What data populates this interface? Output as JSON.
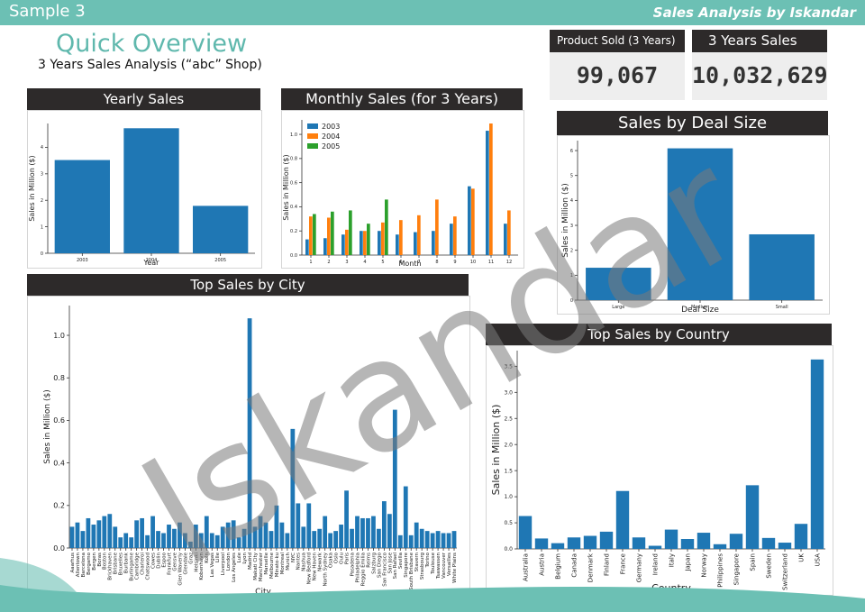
{
  "header": {
    "sample_label": "Sample 3",
    "brand": "Sales Analysis by Iskandar"
  },
  "overview": {
    "title": "Quick Overview",
    "subtitle": "3 Years Sales Analysis (“abc” Shop)"
  },
  "kpis": [
    {
      "label": "Product Sold (3 Years)",
      "value": "99,067"
    },
    {
      "label": "3 Years Sales",
      "value": "10,032,629"
    }
  ],
  "watermark": "Iskandar",
  "colors": {
    "teal": "#6cc0b4",
    "title_teal": "#5fb8ad",
    "header_dark": "#2d2a2a",
    "bar_blue": "#1f77b4",
    "orange": "#ff7f0e",
    "green": "#2ca02c"
  },
  "chart_data": [
    {
      "id": "yearly",
      "panel_title": "Yearly Sales",
      "type": "bar",
      "categories": [
        "2003",
        "2004",
        "2005"
      ],
      "values": [
        3.52,
        4.72,
        1.79
      ],
      "xlabel": "Year",
      "ylabel": "Sales in Million ($)",
      "ylim": [
        0,
        4.9
      ],
      "yticks": [
        0,
        1,
        2,
        3,
        4
      ],
      "grid": false
    },
    {
      "id": "monthly",
      "panel_title": "Monthly Sales (for 3 Years)",
      "type": "bar",
      "categories": [
        "1",
        "2",
        "3",
        "4",
        "5",
        "6",
        "7",
        "8",
        "9",
        "10",
        "11",
        "12"
      ],
      "series": [
        {
          "name": "2003",
          "values": [
            0.13,
            0.14,
            0.17,
            0.2,
            0.2,
            0.17,
            0.19,
            0.2,
            0.26,
            0.57,
            1.03,
            0.26
          ]
        },
        {
          "name": "2004",
          "values": [
            0.32,
            0.31,
            0.21,
            0.2,
            0.27,
            0.29,
            0.33,
            0.46,
            0.32,
            0.55,
            1.09,
            0.37
          ]
        },
        {
          "name": "2005",
          "values": [
            0.34,
            0.36,
            0.37,
            0.26,
            0.46,
            0,
            0,
            0,
            0,
            0,
            0,
            0
          ]
        }
      ],
      "xlabel": "Month",
      "ylabel": "Sales in Million ($)",
      "ylim": [
        0,
        1.12
      ],
      "yticks": [
        0.0,
        0.2,
        0.4,
        0.6,
        0.8,
        1.0
      ],
      "legend": "top-left",
      "grid": false
    },
    {
      "id": "dealsize",
      "panel_title": "Sales by Deal Size",
      "type": "bar",
      "categories": [
        "Large",
        "Medium",
        "Small"
      ],
      "values": [
        1.3,
        6.09,
        2.64
      ],
      "xlabel": "Deal Size",
      "ylabel": "Sales in Million ($)",
      "ylim": [
        0,
        6.4
      ],
      "yticks": [
        0,
        1,
        2,
        3,
        4,
        5,
        6
      ],
      "grid": false
    },
    {
      "id": "city",
      "panel_title": "Top Sales by City",
      "type": "bar",
      "categories": [
        "Aaarhus",
        "Allentown",
        "Barcelona",
        "Bergamo",
        "Bergen",
        "Boras",
        "Boston",
        "Brickhaven",
        "Brisbane",
        "Bruxelles",
        "Burbank",
        "Burlingame",
        "Cambridge",
        "Charleroi",
        "Chatswood",
        "Cowes",
        "Dublin",
        "Espoo",
        "Frankfurt",
        "Gensve",
        "Glen Waverly",
        "Glendale",
        "Graz",
        "Helsinki",
        "Kobenhavn",
        "Koln",
        "Las Vegas",
        "Lille",
        "Liverpool",
        "London",
        "Los Angeles",
        "Lule",
        "Lyon",
        "Madrid",
        "Makati City",
        "Manchester",
        "Marseille",
        "Melbourne",
        "Minato-ku",
        "Montreal",
        "Munich",
        "NYC",
        "Nantes",
        "Nashua",
        "New Bedford",
        "New Haven",
        "Newark",
        "North Sydney",
        "Osaka",
        "Oslo",
        "Oulu",
        "Paris",
        "Pasadena",
        "Philadelphia",
        "Reggio Emilia",
        "Reims",
        "Salzburg",
        "San Diego",
        "San Francisco",
        "San Jose",
        "San Rafael",
        "Sevilla",
        "Singapore",
        "South Brisbane",
        "Stavern",
        "Strasbourg",
        "Torino",
        "Toulouse",
        "Tsawassen",
        "Vancouver",
        "Versailles",
        "White Plains"
      ],
      "values": [
        0.1,
        0.12,
        0.08,
        0.14,
        0.11,
        0.13,
        0.15,
        0.16,
        0.1,
        0.05,
        0.07,
        0.05,
        0.13,
        0.14,
        0.06,
        0.15,
        0.08,
        0.07,
        0.11,
        0.09,
        0.12,
        0.07,
        0.03,
        0.11,
        0.07,
        0.15,
        0.07,
        0.06,
        0.1,
        0.12,
        0.13,
        0.05,
        0.09,
        1.08,
        0.1,
        0.15,
        0.12,
        0.08,
        0.2,
        0.12,
        0.07,
        0.56,
        0.21,
        0.1,
        0.21,
        0.08,
        0.09,
        0.15,
        0.07,
        0.08,
        0.11,
        0.27,
        0.09,
        0.15,
        0.14,
        0.14,
        0.15,
        0.09,
        0.22,
        0.16,
        0.65,
        0.06,
        0.29,
        0.06,
        0.12,
        0.09,
        0.08,
        0.07,
        0.08,
        0.07,
        0.07,
        0.08
      ],
      "xlabel": "City",
      "ylabel": "Sales in Million ($)",
      "ylim": [
        0,
        1.14
      ],
      "yticks": [
        0.0,
        0.2,
        0.4,
        0.6,
        0.8,
        1.0
      ],
      "grid": false
    },
    {
      "id": "country",
      "panel_title": "Top Sales by Country",
      "type": "bar",
      "categories": [
        "Australia",
        "Austria",
        "Belgium",
        "Canada",
        "Denmark",
        "Finland",
        "France",
        "Germany",
        "Ireland",
        "Italy",
        "Japan",
        "Norway",
        "Philippines",
        "Singapore",
        "Spain",
        "Sweden",
        "Switzerland",
        "UK",
        "USA"
      ],
      "values": [
        0.63,
        0.2,
        0.11,
        0.22,
        0.25,
        0.33,
        1.11,
        0.22,
        0.06,
        0.37,
        0.19,
        0.31,
        0.09,
        0.29,
        1.22,
        0.21,
        0.12,
        0.48,
        3.63
      ],
      "xlabel": "Country",
      "ylabel": "Sales in Million ($)",
      "ylim": [
        0,
        3.8
      ],
      "yticks": [
        0.0,
        0.5,
        1.0,
        1.5,
        2.0,
        2.5,
        3.0,
        3.5
      ],
      "grid": false
    }
  ]
}
